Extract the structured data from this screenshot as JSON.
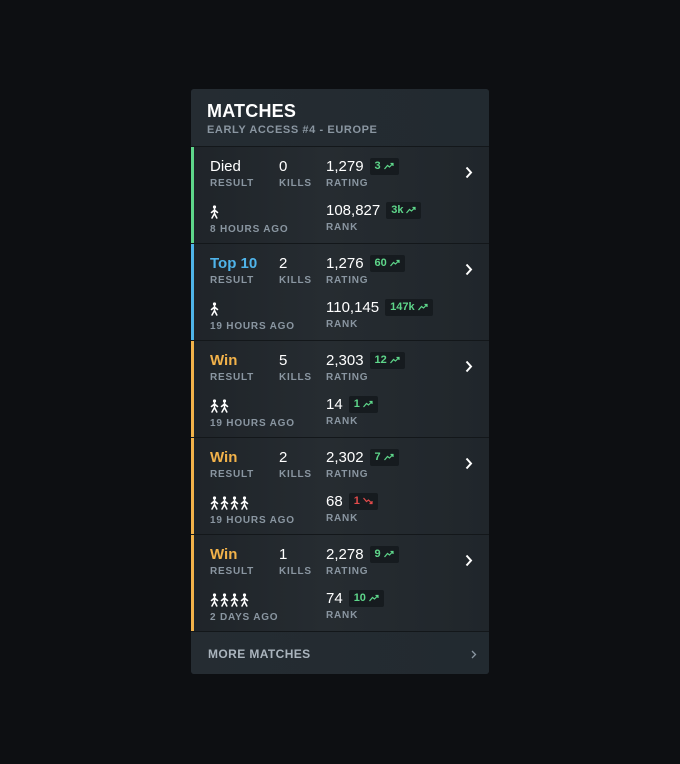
{
  "header": {
    "title": "MATCHES",
    "subtitle": "EARLY ACCESS #4 - EUROPE"
  },
  "labels": {
    "result": "RESULT",
    "kills": "KILLS",
    "rating": "RATING",
    "rank": "RANK"
  },
  "colors": {
    "died": "#5ed68a",
    "top10": "#4fb4ea",
    "win": "#f2b24a",
    "trend_up": "#5ed68a",
    "trend_down": "#e14b4b"
  },
  "matches": [
    {
      "result": "Died",
      "result_type": "died",
      "kills": "0",
      "rating": "1,279",
      "rating_delta": "3",
      "rating_trend": "up",
      "rank": "108,827",
      "rank_delta": "3k",
      "rank_trend": "up",
      "time": "8 HOURS AGO",
      "mode": "solo",
      "players": 1
    },
    {
      "result": "Top 10",
      "result_type": "top10",
      "kills": "2",
      "rating": "1,276",
      "rating_delta": "60",
      "rating_trend": "up",
      "rank": "110,145",
      "rank_delta": "147k",
      "rank_trend": "up",
      "time": "19 HOURS AGO",
      "mode": "solo",
      "players": 1
    },
    {
      "result": "Win",
      "result_type": "win",
      "kills": "5",
      "rating": "2,303",
      "rating_delta": "12",
      "rating_trend": "up",
      "rank": "14",
      "rank_delta": "1",
      "rank_trend": "up",
      "time": "19 HOURS AGO",
      "mode": "duo",
      "players": 2
    },
    {
      "result": "Win",
      "result_type": "win",
      "kills": "2",
      "rating": "2,302",
      "rating_delta": "7",
      "rating_trend": "up",
      "rank": "68",
      "rank_delta": "1",
      "rank_trend": "down",
      "time": "19 HOURS AGO",
      "mode": "squad",
      "players": 4
    },
    {
      "result": "Win",
      "result_type": "win",
      "kills": "1",
      "rating": "2,278",
      "rating_delta": "9",
      "rating_trend": "up",
      "rank": "74",
      "rank_delta": "10",
      "rank_trend": "up",
      "time": "2 DAYS AGO",
      "mode": "squad",
      "players": 4
    }
  ],
  "footer": {
    "more_label": "MORE MATCHES"
  }
}
